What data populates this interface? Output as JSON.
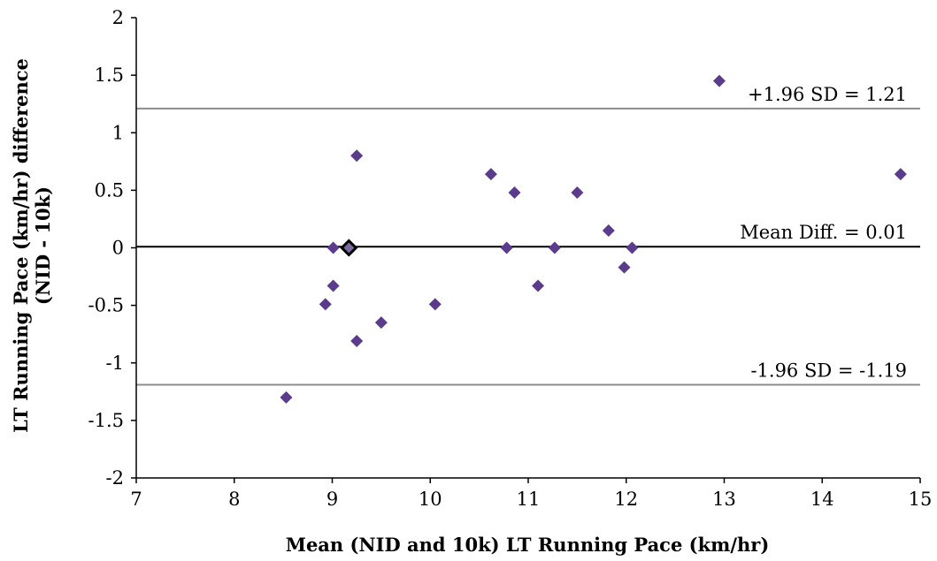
{
  "chart_data": {
    "type": "scatter",
    "title": "",
    "xlabel": "Mean (NID and 10k) LT Running Pace (km/hr)",
    "ylabel_line1": "LT Running Pace (km/hr) difference",
    "ylabel_line2": "(NID - 10k)",
    "xlim": [
      7,
      15
    ],
    "ylim": [
      -2,
      2
    ],
    "xticks": [
      "7",
      "8",
      "9",
      "10",
      "11",
      "12",
      "13",
      "14",
      "15"
    ],
    "yticks": [
      "-2",
      "-1.5",
      "-1",
      "-0.5",
      "0",
      "0.5",
      "1",
      "1.5",
      "2"
    ],
    "grid": false,
    "marker_color": "#5b3b8c",
    "highlight_marker_color": "#000000",
    "points": [
      {
        "x": 8.53,
        "y": -1.3
      },
      {
        "x": 8.93,
        "y": -0.49
      },
      {
        "x": 9.01,
        "y": 0
      },
      {
        "x": 9.01,
        "y": -0.33
      },
      {
        "x": 9.25,
        "y": 0.8
      },
      {
        "x": 9.25,
        "y": -0.81
      },
      {
        "x": 9.5,
        "y": -0.65
      },
      {
        "x": 10.05,
        "y": -0.49
      },
      {
        "x": 10.62,
        "y": 0.64
      },
      {
        "x": 10.78,
        "y": 0
      },
      {
        "x": 10.86,
        "y": 0.48
      },
      {
        "x": 11.1,
        "y": -0.33
      },
      {
        "x": 11.27,
        "y": 0
      },
      {
        "x": 11.5,
        "y": 0.48
      },
      {
        "x": 11.82,
        "y": 0.15
      },
      {
        "x": 11.98,
        "y": -0.17
      },
      {
        "x": 12.06,
        "y": 0
      },
      {
        "x": 12.95,
        "y": 1.45
      },
      {
        "x": 14.8,
        "y": 0.64
      }
    ],
    "highlight_points": [
      {
        "x": 9.17,
        "y": 0
      }
    ],
    "reference_lines": [
      {
        "y": 1.21,
        "label": "+1.96 SD = 1.21",
        "color": "#8c8c8c"
      },
      {
        "y": 0.01,
        "label": "Mean Diff. = 0.01",
        "color": "#000000"
      },
      {
        "y": -1.19,
        "label": "-1.96 SD = -1.19",
        "color": "#8c8c8c"
      }
    ]
  }
}
